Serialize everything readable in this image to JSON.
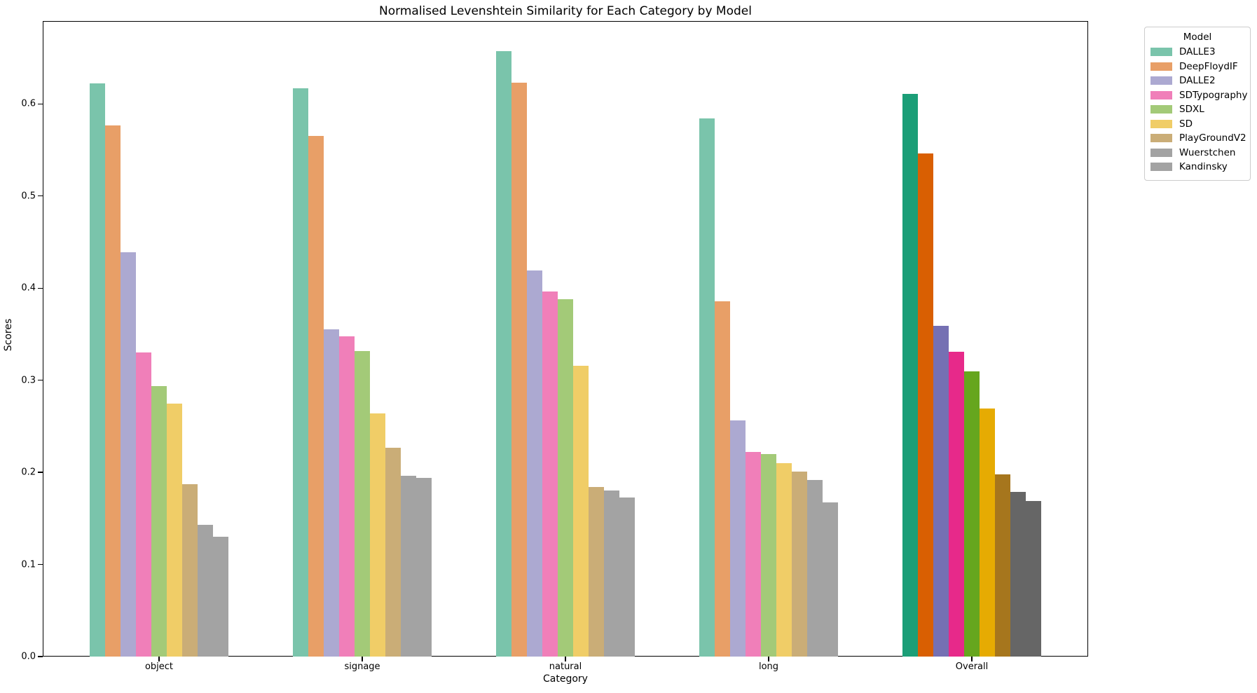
{
  "figure": {
    "title": "Normalised Levenshtein Similarity for Each Category by Model",
    "xlabel": "Category",
    "ylabel": "Scores"
  },
  "legend": {
    "title": "Model",
    "position": "upper-right-outside"
  },
  "chart_data": {
    "type": "bar",
    "title": "Normalised Levenshtein Similarity for Each Category by Model",
    "xlabel": "Category",
    "ylabel": "Scores",
    "categories": [
      "object",
      "signage",
      "natural",
      "long",
      "Overall"
    ],
    "series": [
      {
        "name": "DALLE3",
        "values": [
          0.622,
          0.617,
          0.657,
          0.584,
          0.611
        ]
      },
      {
        "name": "DeepFloydIF",
        "values": [
          0.577,
          0.565,
          0.623,
          0.386,
          0.546
        ]
      },
      {
        "name": "DALLE2",
        "values": [
          0.439,
          0.355,
          0.419,
          0.256,
          0.359
        ]
      },
      {
        "name": "SDTypography",
        "values": [
          0.33,
          0.348,
          0.396,
          0.222,
          0.331
        ]
      },
      {
        "name": "SDXL",
        "values": [
          0.294,
          0.332,
          0.388,
          0.22,
          0.31
        ]
      },
      {
        "name": "SD",
        "values": [
          0.275,
          0.264,
          0.316,
          0.21,
          0.269
        ]
      },
      {
        "name": "PlayGroundV2",
        "values": [
          0.187,
          0.227,
          0.184,
          0.201,
          0.198
        ]
      },
      {
        "name": "Wuerstchen",
        "values": [
          0.143,
          0.196,
          0.18,
          0.192,
          0.179
        ]
      },
      {
        "name": "Kandinsky",
        "values": [
          0.13,
          0.194,
          0.173,
          0.167,
          0.169
        ]
      }
    ],
    "palette_category_bars": [
      "#7ac4ab",
      "#e89f67",
      "#aca9d1",
      "#f07fb9",
      "#a3ca78",
      "#f0cd67",
      "#caad77",
      "#a3a3a3",
      "#a3a3a3"
    ],
    "palette_overall_bars": [
      "#1b9e77",
      "#d95f02",
      "#7570b3",
      "#e7298a",
      "#66a61e",
      "#e6ab02",
      "#a6761d",
      "#666666",
      "#666666"
    ],
    "highlight_category": "Overall",
    "ylim": [
      0,
      0.69
    ],
    "yticks": [
      0.0,
      0.1,
      0.2,
      0.3,
      0.4,
      0.5,
      0.6
    ],
    "ytick_labels": [
      "0.0",
      "0.1",
      "0.2",
      "0.3",
      "0.4",
      "0.5",
      "0.6"
    ],
    "grid": false,
    "legend_title": "Model",
    "legend_position": "upper right, outside axes"
  }
}
